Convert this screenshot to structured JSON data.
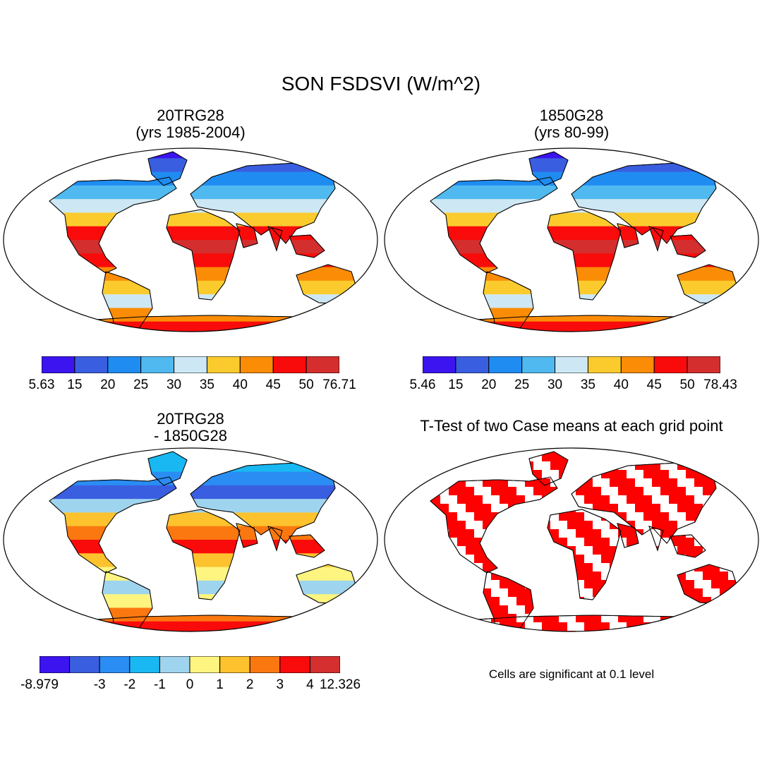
{
  "title": "SON FSDSVI (W/m^2)",
  "panels": [
    {
      "id": "case1",
      "title_line1": "20TRG28",
      "title_line2": "(yrs 1985-2004)",
      "colorbar": {
        "colors": [
          "#3b14f0",
          "#3a5ee0",
          "#1f8cf2",
          "#50b9ef",
          "#cde8f4",
          "#fbcb2e",
          "#fb8c06",
          "#fa0b0b",
          "#d42e2e"
        ],
        "labels": [
          "5.63",
          "15",
          "20",
          "25",
          "30",
          "35",
          "40",
          "45",
          "50",
          "76.71"
        ]
      }
    },
    {
      "id": "case2",
      "title_line1": "1850G28",
      "title_line2": "(yrs 80-99)",
      "colorbar": {
        "colors": [
          "#3b14f0",
          "#3a5ee0",
          "#1f8cf2",
          "#50b9ef",
          "#cde8f4",
          "#fbcb2e",
          "#fb8c06",
          "#fa0b0b",
          "#d42e2e"
        ],
        "labels": [
          "5.46",
          "15",
          "20",
          "25",
          "30",
          "35",
          "40",
          "45",
          "50",
          "78.43"
        ]
      }
    },
    {
      "id": "difference",
      "title_line1": "20TRG28",
      "title_line2": "- 1850G28",
      "colorbar": {
        "colors": [
          "#3b14f0",
          "#3a5ee0",
          "#2a8df3",
          "#19b8f2",
          "#9fd4ef",
          "#fdf580",
          "#fdc22e",
          "#fa780f",
          "#fa0b0b",
          "#d42e2e"
        ],
        "labels": [
          "-8.979",
          "",
          "-3",
          "-2",
          "-1",
          "0",
          "1",
          "2",
          "3",
          "4",
          "12.326"
        ]
      }
    },
    {
      "id": "ttest",
      "title_line1": "T-Test of two Case means at each grid point",
      "title_line2": "",
      "significance_color": "#ff0000"
    }
  ],
  "ttest_note": "Cells are significant at 0.1 level"
}
